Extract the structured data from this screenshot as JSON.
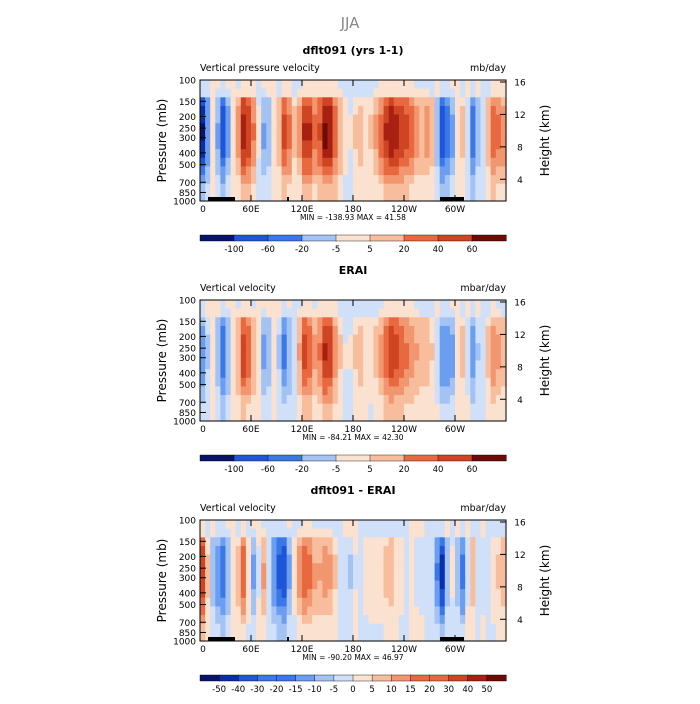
{
  "figure": {
    "title": "JJA"
  },
  "chart_data": [
    {
      "type": "heatmap",
      "title": "dflt091 (yrs 1-1)",
      "left_label": "Vertical pressure velocity",
      "units": "mb/day",
      "ylabel": "Pressure (mb)",
      "ylabel_right": "Height (km)",
      "xticks": [
        "0",
        "60E",
        "120E",
        "180",
        "120W",
        "60W"
      ],
      "yticks": [
        "100",
        "150",
        "200",
        "250",
        "300",
        "400",
        "500",
        "700",
        "850",
        "1000"
      ],
      "yticks_right": [
        "16",
        "12",
        "8",
        "4"
      ],
      "stats": "MIN = -138.93   MAX =  41.58",
      "colorbar_labels": [
        "-100",
        "-60",
        "-20",
        "-5",
        "5",
        "20",
        "40",
        "60"
      ],
      "value_range": [
        -138.93,
        41.58
      ],
      "bands": [
        -6,
        0,
        -5,
        0,
        6,
        3,
        -3,
        0,
        5,
        1,
        6,
        3,
        7,
        3,
        0,
        2,
        1,
        3,
        6,
        5,
        4,
        2,
        3,
        -5,
        -3,
        2,
        -4,
        0,
        4,
        3
      ]
    },
    {
      "type": "heatmap",
      "title": "ERAI",
      "left_label": "Vertical velocity",
      "units": "mbar/day",
      "ylabel": "Pressure (mb)",
      "ylabel_right": "Height (km)",
      "xticks": [
        "0",
        "60E",
        "120E",
        "180",
        "120W",
        "60W"
      ],
      "yticks": [
        "100",
        "150",
        "200",
        "250",
        "300",
        "400",
        "500",
        "700",
        "850",
        "1000"
      ],
      "yticks_right": [
        "16",
        "12",
        "8",
        "4"
      ],
      "stats": "MIN = -84.21   MAX =  42.30",
      "colorbar_labels": [
        "-100",
        "-60",
        "-20",
        "-5",
        "5",
        "20",
        "40",
        "60"
      ],
      "value_range": [
        -84.21,
        42.3
      ],
      "bands": [
        -3,
        0,
        -4,
        0,
        5,
        2,
        -3,
        0,
        -4,
        1,
        5,
        2,
        6,
        2,
        0,
        2,
        1,
        2,
        5,
        4,
        3,
        2,
        2,
        -3,
        -3,
        2,
        -3,
        0,
        3,
        2
      ]
    },
    {
      "type": "heatmap",
      "title": "dflt091 - ERAI",
      "left_label": "Vertical velocity",
      "units": "mbar/day",
      "ylabel": "Pressure (mb)",
      "ylabel_right": "Height (km)",
      "xticks": [
        "0",
        "60E",
        "120E",
        "180",
        "120W",
        "60W"
      ],
      "yticks": [
        "100",
        "150",
        "200",
        "250",
        "300",
        "400",
        "500",
        "700",
        "850",
        "1000"
      ],
      "yticks_right": [
        "16",
        "12",
        "8",
        "4"
      ],
      "stats": "MIN = -90.20   MAX =  46.97",
      "colorbar_labels": [
        "-50",
        "-40",
        "-30",
        "-20",
        "-15",
        "-10",
        "-5",
        "0",
        "5",
        "10",
        "15",
        "20",
        "30",
        "40",
        "50"
      ],
      "value_range": [
        -90.2,
        46.97
      ],
      "bands": [
        5,
        -2,
        -4,
        0,
        4,
        -3,
        3,
        -4,
        -5,
        2,
        4,
        2,
        3,
        1,
        -2,
        0,
        1,
        1,
        2,
        1,
        0,
        -1,
        1,
        -6,
        1,
        -4,
        2,
        -1,
        1,
        2
      ]
    }
  ],
  "colors": {
    "palette": [
      "#08146b",
      "#0a2ea8",
      "#1f56d8",
      "#3a78e8",
      "#6b9ef0",
      "#a3c3f5",
      "#cfe0f8",
      "#fbe1cf",
      "#f7bd9c",
      "#f29670",
      "#e8693f",
      "#cf4423",
      "#a82012",
      "#6e0b05"
    ]
  }
}
